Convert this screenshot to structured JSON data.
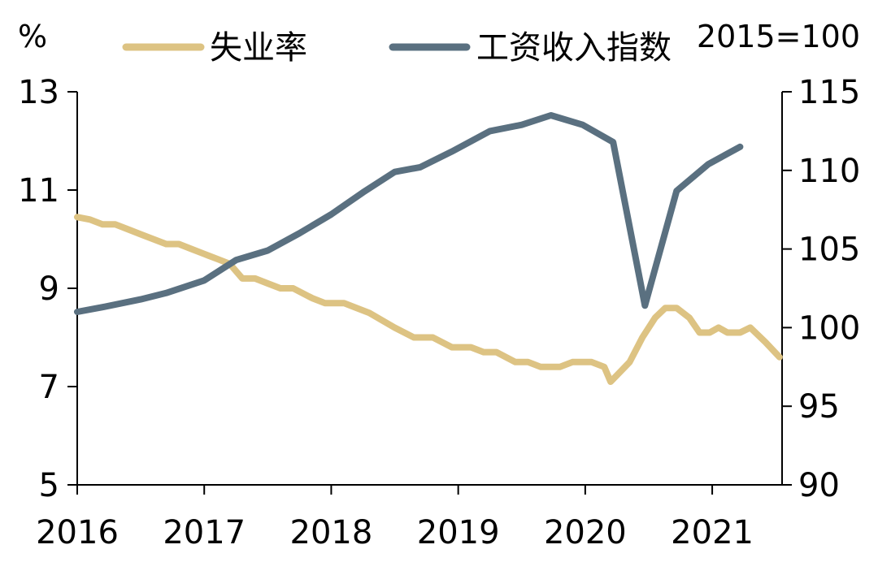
{
  "chart_data": {
    "type": "line",
    "left_axis": {
      "unit": "%",
      "ylim": [
        5,
        13
      ],
      "ticks": [
        "5",
        "7",
        "9",
        "11",
        "13"
      ]
    },
    "right_axis": {
      "unit": "2015=100",
      "ylim": [
        90,
        115
      ],
      "ticks": [
        "90",
        "95",
        "100",
        "105",
        "110",
        "115"
      ]
    },
    "x_axis": {
      "xlim": [
        2016,
        2021.55
      ],
      "ticks": [
        "2016",
        "2017",
        "2018",
        "2019",
        "2020",
        "2021"
      ]
    },
    "grid": false,
    "legend_position": "top",
    "series": [
      {
        "name": "失业率",
        "axis": "left",
        "color": "#DDC383",
        "points": [
          [
            2016.0,
            10.45
          ],
          [
            2016.1,
            10.4
          ],
          [
            2016.2,
            10.3
          ],
          [
            2016.3,
            10.3
          ],
          [
            2016.4,
            10.2
          ],
          [
            2016.5,
            10.1
          ],
          [
            2016.6,
            10.0
          ],
          [
            2016.7,
            9.9
          ],
          [
            2016.8,
            9.9
          ],
          [
            2016.9,
            9.8
          ],
          [
            2017.0,
            9.7
          ],
          [
            2017.1,
            9.6
          ],
          [
            2017.2,
            9.5
          ],
          [
            2017.3,
            9.2
          ],
          [
            2017.4,
            9.2
          ],
          [
            2017.5,
            9.1
          ],
          [
            2017.6,
            9.0
          ],
          [
            2017.7,
            9.0
          ],
          [
            2017.85,
            8.8
          ],
          [
            2017.95,
            8.7
          ],
          [
            2018.1,
            8.7
          ],
          [
            2018.3,
            8.5
          ],
          [
            2018.5,
            8.2
          ],
          [
            2018.65,
            8.0
          ],
          [
            2018.8,
            8.0
          ],
          [
            2018.95,
            7.8
          ],
          [
            2019.1,
            7.8
          ],
          [
            2019.2,
            7.7
          ],
          [
            2019.3,
            7.7
          ],
          [
            2019.45,
            7.5
          ],
          [
            2019.55,
            7.5
          ],
          [
            2019.65,
            7.4
          ],
          [
            2019.8,
            7.4
          ],
          [
            2019.9,
            7.5
          ],
          [
            2020.05,
            7.5
          ],
          [
            2020.15,
            7.4
          ],
          [
            2020.2,
            7.1
          ],
          [
            2020.35,
            7.5
          ],
          [
            2020.45,
            8.0
          ],
          [
            2020.55,
            8.4
          ],
          [
            2020.63,
            8.6
          ],
          [
            2020.72,
            8.6
          ],
          [
            2020.82,
            8.4
          ],
          [
            2020.9,
            8.1
          ],
          [
            2020.98,
            8.1
          ],
          [
            2021.05,
            8.2
          ],
          [
            2021.12,
            8.1
          ],
          [
            2021.22,
            8.1
          ],
          [
            2021.3,
            8.2
          ],
          [
            2021.42,
            7.9
          ],
          [
            2021.53,
            7.6
          ]
        ]
      },
      {
        "name": "工资收入指数",
        "axis": "right",
        "color": "#5A7080",
        "points": [
          [
            2016.0,
            101.0
          ],
          [
            2016.2,
            101.3
          ],
          [
            2016.5,
            101.8
          ],
          [
            2016.7,
            102.2
          ],
          [
            2017.0,
            103.0
          ],
          [
            2017.25,
            104.3
          ],
          [
            2017.5,
            104.9
          ],
          [
            2017.75,
            106.0
          ],
          [
            2018.0,
            107.2
          ],
          [
            2018.25,
            108.6
          ],
          [
            2018.5,
            109.9
          ],
          [
            2018.7,
            110.2
          ],
          [
            2018.95,
            111.2
          ],
          [
            2019.25,
            112.5
          ],
          [
            2019.5,
            112.9
          ],
          [
            2019.73,
            113.5
          ],
          [
            2019.98,
            112.9
          ],
          [
            2020.22,
            111.8
          ],
          [
            2020.47,
            101.4
          ],
          [
            2020.72,
            108.7
          ],
          [
            2020.97,
            110.4
          ],
          [
            2021.22,
            111.5
          ]
        ]
      }
    ]
  }
}
